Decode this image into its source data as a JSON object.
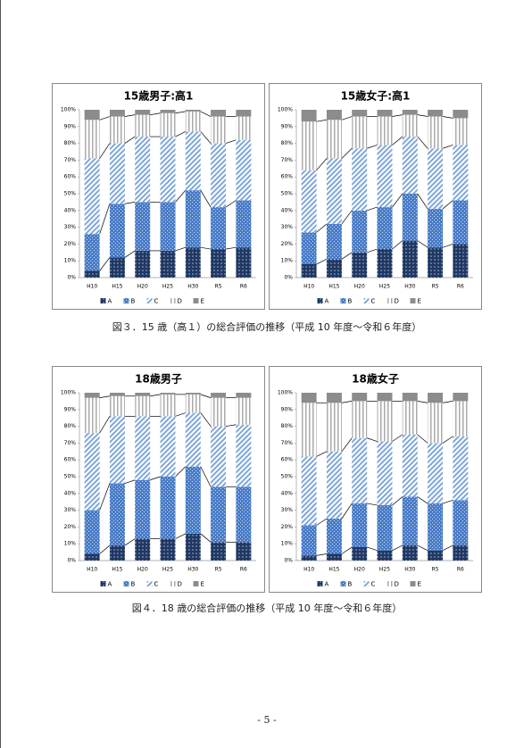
{
  "chart_data": [
    {
      "type": "stacked-bar",
      "title": "15歳男子:高1",
      "categories": [
        "H10",
        "H15",
        "H20",
        "H25",
        "H30",
        "R5",
        "R6"
      ],
      "series": [
        {
          "name": "A",
          "color": "#1f3864",
          "values": [
            4,
            12,
            16,
            16,
            18,
            17,
            18
          ]
        },
        {
          "name": "B",
          "color": "#4a7cc7",
          "values": [
            22,
            32,
            29,
            29,
            34,
            25,
            28
          ]
        },
        {
          "name": "C",
          "color": "#7fa7d9",
          "values": [
            45,
            36,
            39,
            39,
            35,
            38,
            36
          ]
        },
        {
          "name": "D",
          "color": "#aaaaaa",
          "values": [
            23,
            16,
            13,
            14,
            12,
            16,
            14
          ]
        },
        {
          "name": "E",
          "color": "#8c8c8c",
          "values": [
            6,
            4,
            3,
            2,
            1,
            4,
            4
          ]
        }
      ],
      "ylim": [
        0,
        100
      ],
      "yticks": [
        {
          "value": 0,
          "label": "0%"
        },
        {
          "value": 10,
          "label": "10%"
        },
        {
          "value": 20,
          "label": "20%"
        },
        {
          "value": 30,
          "label": "30%"
        },
        {
          "value": 40,
          "label": "40%"
        },
        {
          "value": 50,
          "label": "50%"
        },
        {
          "value": 60,
          "label": "60%"
        },
        {
          "value": 70,
          "label": "70%"
        },
        {
          "value": 80,
          "label": "80%"
        },
        {
          "value": 90,
          "label": "90%"
        },
        {
          "value": 100,
          "label": "100%"
        }
      ],
      "grid": false,
      "legend": "bottom"
    },
    {
      "type": "stacked-bar",
      "title": "15歳女子:高1",
      "categories": [
        "H10",
        "H15",
        "H20",
        "H25",
        "H30",
        "R5",
        "R6"
      ],
      "series": [
        {
          "name": "A",
          "color": "#1f3864",
          "values": [
            8,
            11,
            15,
            17,
            22,
            18,
            20
          ]
        },
        {
          "name": "B",
          "color": "#4a7cc7",
          "values": [
            19,
            21,
            25,
            25,
            28,
            23,
            26
          ]
        },
        {
          "name": "C",
          "color": "#7fa7d9",
          "values": [
            37,
            39,
            37,
            37,
            34,
            36,
            33
          ]
        },
        {
          "name": "D",
          "color": "#aaaaaa",
          "values": [
            29,
            23,
            19,
            17,
            13,
            19,
            16
          ]
        },
        {
          "name": "E",
          "color": "#8c8c8c",
          "values": [
            7,
            6,
            4,
            4,
            3,
            4,
            5
          ]
        }
      ],
      "ylim": [
        0,
        100
      ],
      "yticks": [
        {
          "value": 0,
          "label": "0%"
        },
        {
          "value": 10,
          "label": "10%"
        },
        {
          "value": 20,
          "label": "20%"
        },
        {
          "value": 30,
          "label": "30%"
        },
        {
          "value": 40,
          "label": "40%"
        },
        {
          "value": 50,
          "label": "50%"
        },
        {
          "value": 60,
          "label": "60%"
        },
        {
          "value": 70,
          "label": "70%"
        },
        {
          "value": 80,
          "label": "80%"
        },
        {
          "value": 90,
          "label": "90%"
        },
        {
          "value": 100,
          "label": "100%"
        }
      ],
      "grid": false,
      "legend": "bottom"
    },
    {
      "type": "stacked-bar",
      "title": "18歳男子",
      "categories": [
        "H10",
        "H15",
        "H20",
        "H25",
        "H30",
        "R5",
        "R6"
      ],
      "series": [
        {
          "name": "A",
          "color": "#1f3864",
          "values": [
            4,
            9,
            13,
            13,
            16,
            11,
            11
          ]
        },
        {
          "name": "B",
          "color": "#4a7cc7",
          "values": [
            26,
            37,
            35,
            37,
            40,
            33,
            33
          ]
        },
        {
          "name": "C",
          "color": "#7fa7d9",
          "values": [
            46,
            40,
            38,
            36,
            32,
            36,
            37
          ]
        },
        {
          "name": "D",
          "color": "#aaaaaa",
          "values": [
            21,
            12,
            12,
            13,
            11,
            17,
            16
          ]
        },
        {
          "name": "E",
          "color": "#8c8c8c",
          "values": [
            3,
            2,
            2,
            1,
            1,
            3,
            3
          ]
        }
      ],
      "ylim": [
        0,
        100
      ],
      "yticks": [
        {
          "value": 0,
          "label": "0%"
        },
        {
          "value": 10,
          "label": "10%"
        },
        {
          "value": 20,
          "label": "20%"
        },
        {
          "value": 30,
          "label": "30%"
        },
        {
          "value": 40,
          "label": "40%"
        },
        {
          "value": 50,
          "label": "50%"
        },
        {
          "value": 60,
          "label": "60%"
        },
        {
          "value": 70,
          "label": "70%"
        },
        {
          "value": 80,
          "label": "80%"
        },
        {
          "value": 90,
          "label": "90%"
        },
        {
          "value": 100,
          "label": "100%"
        }
      ],
      "grid": false,
      "legend": "bottom"
    },
    {
      "type": "stacked-bar",
      "title": "18歳女子",
      "categories": [
        "H10",
        "H15",
        "H20",
        "H25",
        "H30",
        "R5",
        "R6"
      ],
      "series": [
        {
          "name": "A",
          "color": "#1f3864",
          "values": [
            3,
            4,
            8,
            6,
            9,
            6,
            9
          ]
        },
        {
          "name": "B",
          "color": "#4a7cc7",
          "values": [
            18,
            21,
            26,
            27,
            29,
            28,
            27
          ]
        },
        {
          "name": "C",
          "color": "#7fa7d9",
          "values": [
            41,
            40,
            39,
            38,
            37,
            36,
            38
          ]
        },
        {
          "name": "D",
          "color": "#aaaaaa",
          "values": [
            32,
            29,
            22,
            24,
            20,
            24,
            21
          ]
        },
        {
          "name": "E",
          "color": "#8c8c8c",
          "values": [
            6,
            6,
            5,
            5,
            5,
            6,
            5
          ]
        }
      ],
      "ylim": [
        0,
        100
      ],
      "yticks": [
        {
          "value": 0,
          "label": "0%"
        },
        {
          "value": 10,
          "label": "10%"
        },
        {
          "value": 20,
          "label": "20%"
        },
        {
          "value": 30,
          "label": "30%"
        },
        {
          "value": 40,
          "label": "40%"
        },
        {
          "value": 50,
          "label": "50%"
        },
        {
          "value": 60,
          "label": "60%"
        },
        {
          "value": 70,
          "label": "70%"
        },
        {
          "value": 80,
          "label": "80%"
        },
        {
          "value": 90,
          "label": "90%"
        },
        {
          "value": 100,
          "label": "100%"
        }
      ],
      "grid": false,
      "legend": "bottom"
    }
  ],
  "captions": [
    "図３．15 歳（高１）の総合評価の推移（平成 10 年度～令和６年度）",
    "図４．18 歳の総合評価の推移（平成 10 年度～令和６年度）"
  ],
  "page_number": "- 5 -"
}
